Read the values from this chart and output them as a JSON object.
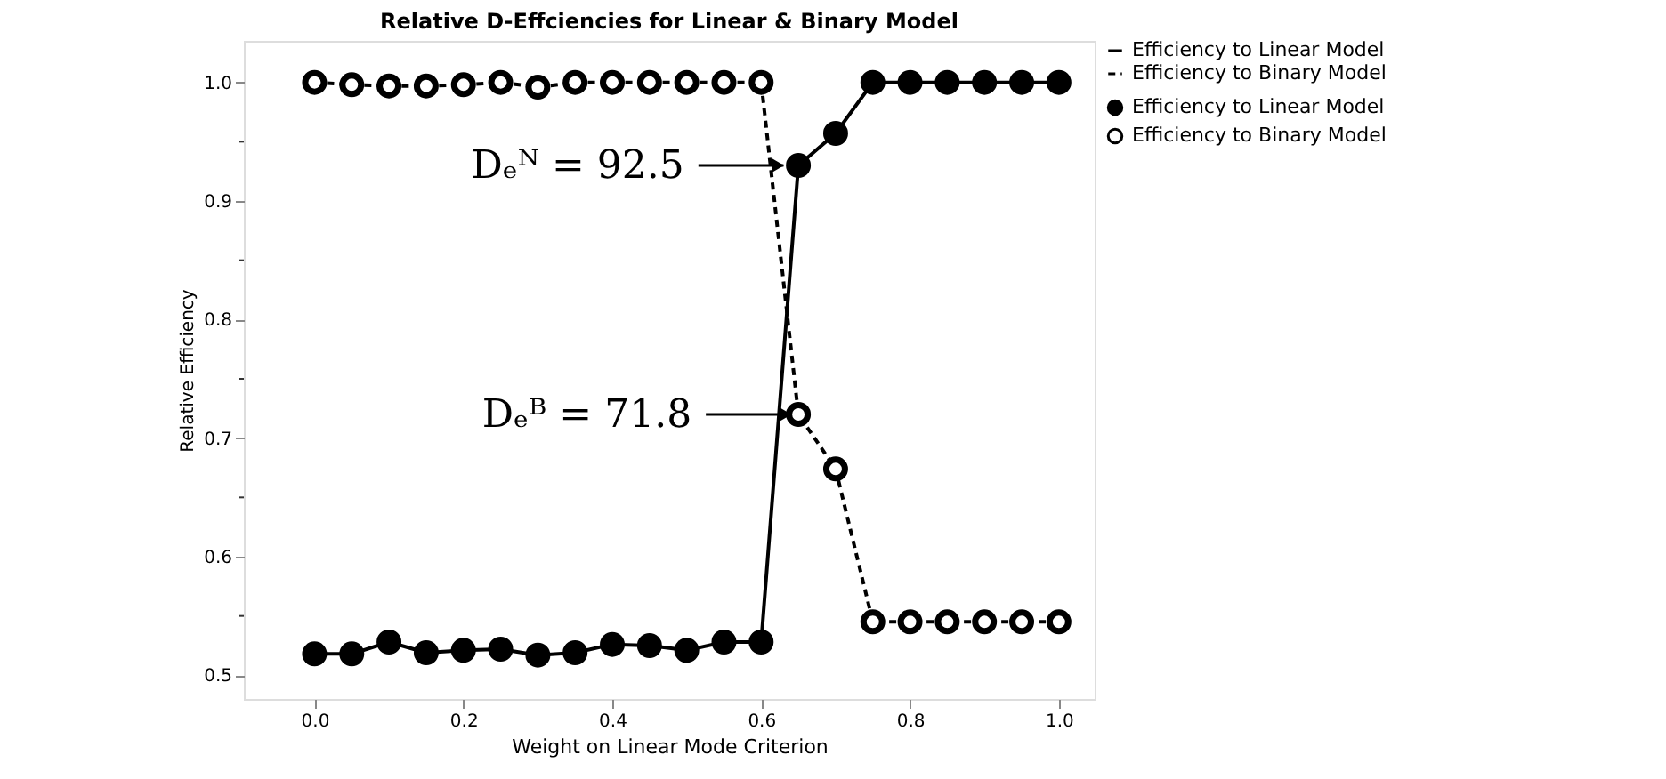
{
  "chart_data": {
    "type": "line",
    "title": "Relative D-Effciencies for Linear & Binary Model",
    "xlabel": "Weight on Linear Mode Criterion",
    "ylabel": "Relative Efficiency",
    "x": [
      0,
      0.05,
      0.1,
      0.15,
      0.2,
      0.25,
      0.3,
      0.35,
      0.4,
      0.45,
      0.5,
      0.55,
      0.6,
      0.65,
      0.7,
      0.75,
      0.8,
      0.85,
      0.9,
      0.95,
      1.0
    ],
    "series": [
      {
        "name": "Efficiency to Linear Model",
        "color": "#000000",
        "marker": "circle",
        "line_style": "solid",
        "values": [
          0.518,
          0.518,
          0.528,
          0.519,
          0.521,
          0.522,
          0.517,
          0.519,
          0.526,
          0.525,
          0.521,
          0.528,
          0.528,
          0.93,
          0.957,
          1.0,
          1.0,
          1.0,
          1.0,
          1.0,
          1.0
        ]
      },
      {
        "name": "Efficiency to Binary Model",
        "color": "#000000",
        "marker": "circle",
        "line_style": "dashed",
        "values": [
          1.0,
          0.998,
          0.997,
          0.997,
          0.998,
          1.0,
          0.996,
          1.0,
          1.0,
          1.0,
          1.0,
          1.0,
          1.0,
          0.72,
          0.674,
          0.545,
          0.545,
          0.545,
          0.545,
          0.545,
          0.545
        ]
      }
    ],
    "xlim": [
      -0.095,
      1.048
    ],
    "ylim": [
      0.48,
      1.035
    ],
    "xticks": [
      {
        "value": 0,
        "label": "0.0"
      },
      {
        "value": 0.2,
        "label": "0.2"
      },
      {
        "value": 0.4,
        "label": "0.4"
      },
      {
        "value": 0.6,
        "label": "0.6"
      },
      {
        "value": 0.8,
        "label": "0.8"
      },
      {
        "value": 1.0,
        "label": "1.0"
      }
    ],
    "yticks": [
      {
        "value": 0.5,
        "label": "0.5"
      },
      {
        "value": 0.55,
        "label": null
      },
      {
        "value": 0.6,
        "label": "0.6"
      },
      {
        "value": 0.65,
        "label": null
      },
      {
        "value": 0.7,
        "label": "0.7"
      },
      {
        "value": 0.75,
        "label": null
      },
      {
        "value": 0.8,
        "label": "0.8"
      },
      {
        "value": 0.85,
        "label": null
      },
      {
        "value": 0.9,
        "label": "0.9"
      },
      {
        "value": 0.95,
        "label": null
      },
      {
        "value": 1.0,
        "label": "1.0"
      }
    ],
    "annotations": [
      {
        "text": "Dₑᴺ = 92.5",
        "x": 0.63,
        "y": 0.93
      },
      {
        "text": "Dₑᴮ = 71.8",
        "x": 0.64,
        "y": 0.72
      }
    ],
    "grid": false,
    "legend": "top right"
  }
}
